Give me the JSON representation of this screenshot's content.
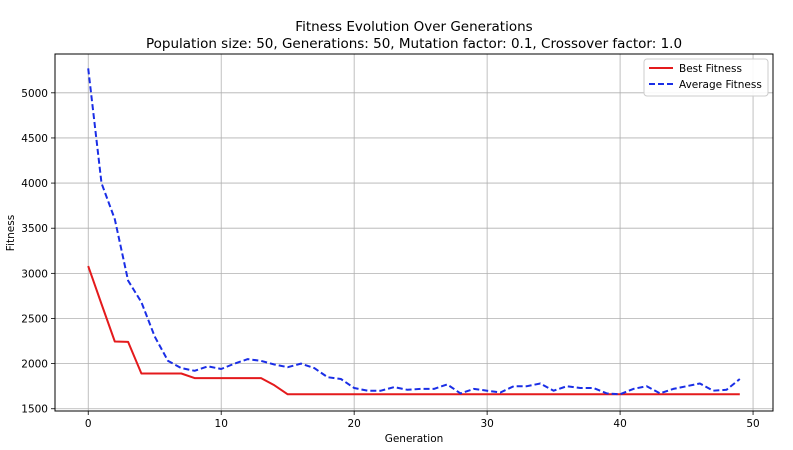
{
  "chart_data": {
    "type": "line",
    "title": "Fitness Evolution Over Generations",
    "subtitle": "Population size: 50, Generations: 50, Mutation factor: 0.1, Crossover factor: 1.0",
    "xlabel": "Generation",
    "ylabel": "Fitness",
    "xlim": [
      -2.5,
      51.5
    ],
    "ylim": [
      1475,
      5430
    ],
    "xticks": [
      0,
      10,
      20,
      30,
      40,
      50
    ],
    "yticks": [
      1500,
      2000,
      2500,
      3000,
      3500,
      4000,
      4500,
      5000
    ],
    "grid": true,
    "legend_position": "top-right",
    "x": [
      0,
      1,
      2,
      3,
      4,
      5,
      6,
      7,
      8,
      9,
      10,
      11,
      12,
      13,
      14,
      15,
      16,
      17,
      18,
      19,
      20,
      21,
      22,
      23,
      24,
      25,
      26,
      27,
      28,
      29,
      30,
      31,
      32,
      33,
      34,
      35,
      36,
      37,
      38,
      39,
      40,
      41,
      42,
      43,
      44,
      45,
      46,
      47,
      48,
      49
    ],
    "series": [
      {
        "name": "Best Fitness",
        "color": "#e41a1c",
        "style": "solid",
        "values": [
          3080,
          2660,
          2245,
          2240,
          1890,
          1890,
          1890,
          1890,
          1840,
          1840,
          1840,
          1840,
          1840,
          1840,
          1760,
          1660,
          1660,
          1660,
          1660,
          1660,
          1660,
          1660,
          1660,
          1660,
          1660,
          1660,
          1660,
          1660,
          1660,
          1660,
          1660,
          1660,
          1660,
          1660,
          1660,
          1660,
          1660,
          1660,
          1660,
          1660,
          1660,
          1660,
          1660,
          1660,
          1660,
          1660,
          1660,
          1660,
          1660,
          1660
        ]
      },
      {
        "name": "Average Fitness",
        "color": "#1a2ee6",
        "style": "dashed",
        "values": [
          5270,
          4000,
          3600,
          2920,
          2680,
          2300,
          2030,
          1950,
          1920,
          1970,
          1940,
          2000,
          2050,
          2030,
          1990,
          1960,
          2000,
          1950,
          1850,
          1830,
          1730,
          1700,
          1700,
          1740,
          1710,
          1720,
          1720,
          1770,
          1670,
          1720,
          1700,
          1680,
          1750,
          1750,
          1780,
          1700,
          1750,
          1730,
          1730,
          1670,
          1660,
          1720,
          1750,
          1670,
          1720,
          1750,
          1780,
          1700,
          1710,
          1830
        ]
      }
    ]
  }
}
